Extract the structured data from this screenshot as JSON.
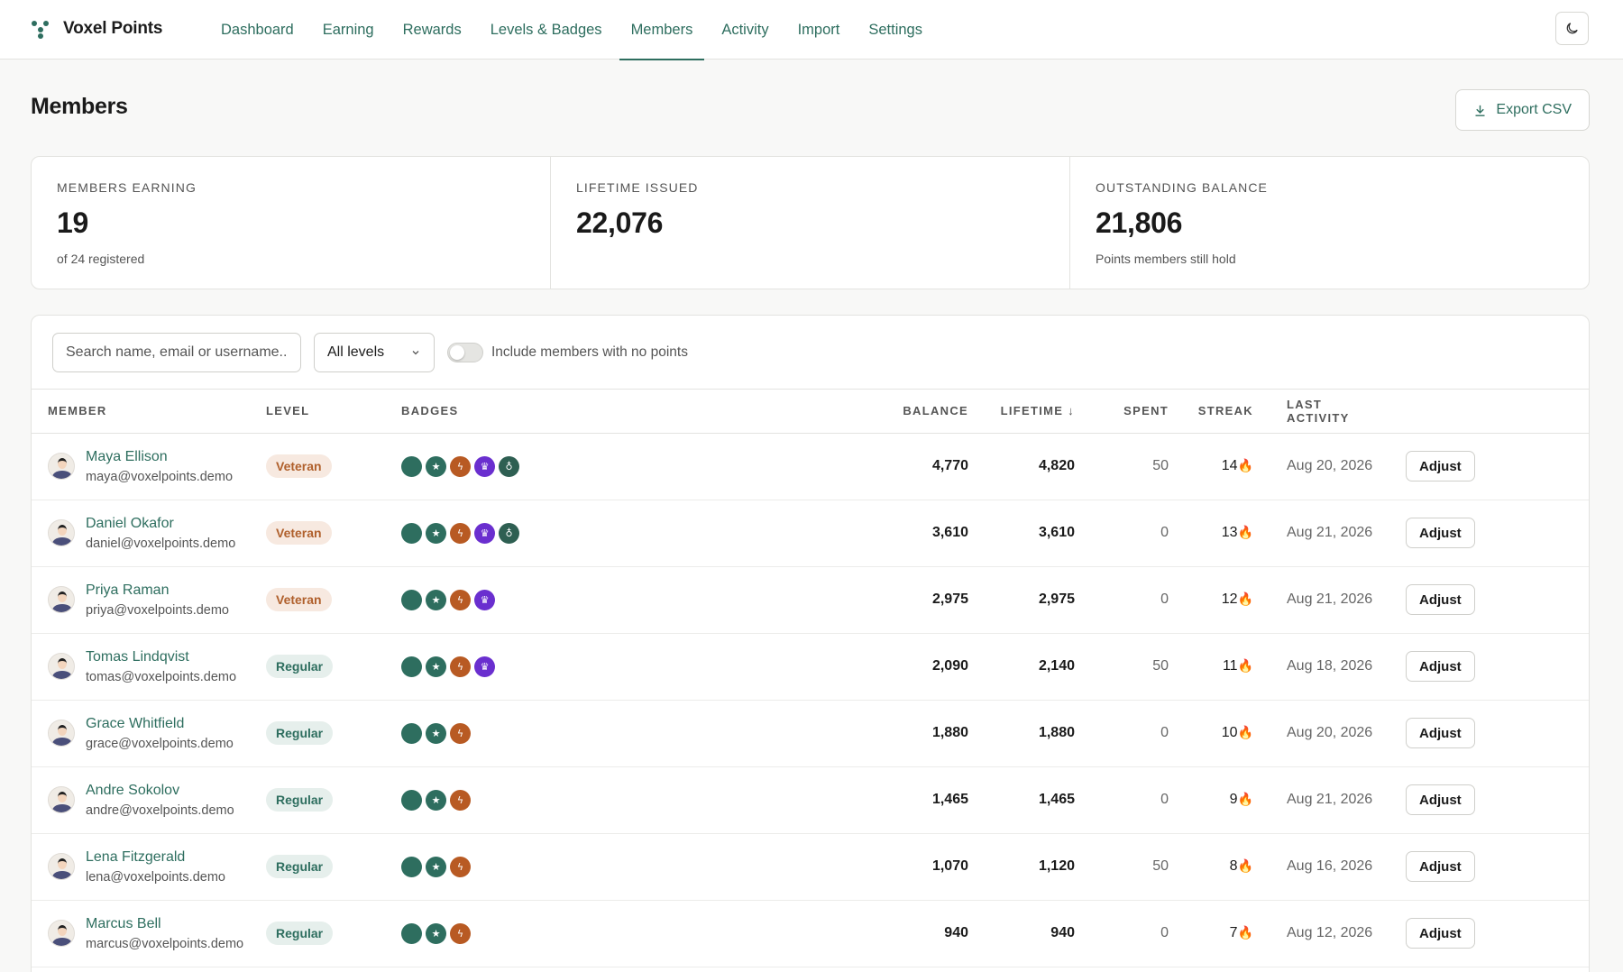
{
  "app": {
    "name": "Voxel Points"
  },
  "nav": [
    "Dashboard",
    "Earning",
    "Rewards",
    "Levels & Badges",
    "Members",
    "Activity",
    "Import",
    "Settings"
  ],
  "nav_active": "Members",
  "page": {
    "title": "Members",
    "export_label": "Export CSV"
  },
  "stats": [
    {
      "label": "MEMBERS EARNING",
      "value": "19",
      "sub": "of 24 registered"
    },
    {
      "label": "LIFETIME ISSUED",
      "value": "22,076",
      "sub": ""
    },
    {
      "label": "OUTSTANDING BALANCE",
      "value": "21,806",
      "sub": "Points members still hold"
    }
  ],
  "filters": {
    "search_placeholder": "Search name, email or username...",
    "level_selected": "All levels",
    "toggle_label": "Include members with no points",
    "toggle_on": false
  },
  "columns": {
    "member": "MEMBER",
    "level": "LEVEL",
    "badges": "BADGES",
    "balance": "BALANCE",
    "lifetime": "LIFETIME ↓",
    "spent": "SPENT",
    "streak": "STREAK",
    "last_activity": "LAST ACTIVITY"
  },
  "adjust_label": "Adjust",
  "streak_icon": "🔥",
  "members": [
    {
      "name": "Maya Ellison",
      "email": "maya@voxelpoints.demo",
      "level": "Veteran",
      "badges": [
        "circle",
        "star",
        "bolt",
        "trophy",
        "medal"
      ],
      "balance": "4,770",
      "lifetime": "4,820",
      "spent": "50",
      "streak": "14",
      "last": "Aug 20, 2026"
    },
    {
      "name": "Daniel Okafor",
      "email": "daniel@voxelpoints.demo",
      "level": "Veteran",
      "badges": [
        "circle",
        "star",
        "bolt",
        "trophy",
        "medal"
      ],
      "balance": "3,610",
      "lifetime": "3,610",
      "spent": "0",
      "streak": "13",
      "last": "Aug 21, 2026"
    },
    {
      "name": "Priya Raman",
      "email": "priya@voxelpoints.demo",
      "level": "Veteran",
      "badges": [
        "circle",
        "star",
        "bolt",
        "trophy"
      ],
      "balance": "2,975",
      "lifetime": "2,975",
      "spent": "0",
      "streak": "12",
      "last": "Aug 21, 2026"
    },
    {
      "name": "Tomas Lindqvist",
      "email": "tomas@voxelpoints.demo",
      "level": "Regular",
      "badges": [
        "circle",
        "star",
        "bolt",
        "trophy"
      ],
      "balance": "2,090",
      "lifetime": "2,140",
      "spent": "50",
      "streak": "11",
      "last": "Aug 18, 2026"
    },
    {
      "name": "Grace Whitfield",
      "email": "grace@voxelpoints.demo",
      "level": "Regular",
      "badges": [
        "circle",
        "star",
        "bolt"
      ],
      "balance": "1,880",
      "lifetime": "1,880",
      "spent": "0",
      "streak": "10",
      "last": "Aug 20, 2026"
    },
    {
      "name": "Andre Sokolov",
      "email": "andre@voxelpoints.demo",
      "level": "Regular",
      "badges": [
        "circle",
        "star",
        "bolt"
      ],
      "balance": "1,465",
      "lifetime": "1,465",
      "spent": "0",
      "streak": "9",
      "last": "Aug 21, 2026"
    },
    {
      "name": "Lena Fitzgerald",
      "email": "lena@voxelpoints.demo",
      "level": "Regular",
      "badges": [
        "circle",
        "star",
        "bolt"
      ],
      "balance": "1,070",
      "lifetime": "1,120",
      "spent": "50",
      "streak": "8",
      "last": "Aug 16, 2026"
    },
    {
      "name": "Marcus Bell",
      "email": "marcus@voxelpoints.demo",
      "level": "Regular",
      "badges": [
        "circle",
        "star",
        "bolt"
      ],
      "balance": "940",
      "lifetime": "940",
      "spent": "0",
      "streak": "7",
      "last": "Aug 12, 2026"
    }
  ],
  "colors": {
    "accent": "#2e6e5f",
    "veteran": "#b0602c",
    "purple": "#6a2fcf",
    "orange": "#b85a23",
    "flame": "#e58a25"
  }
}
